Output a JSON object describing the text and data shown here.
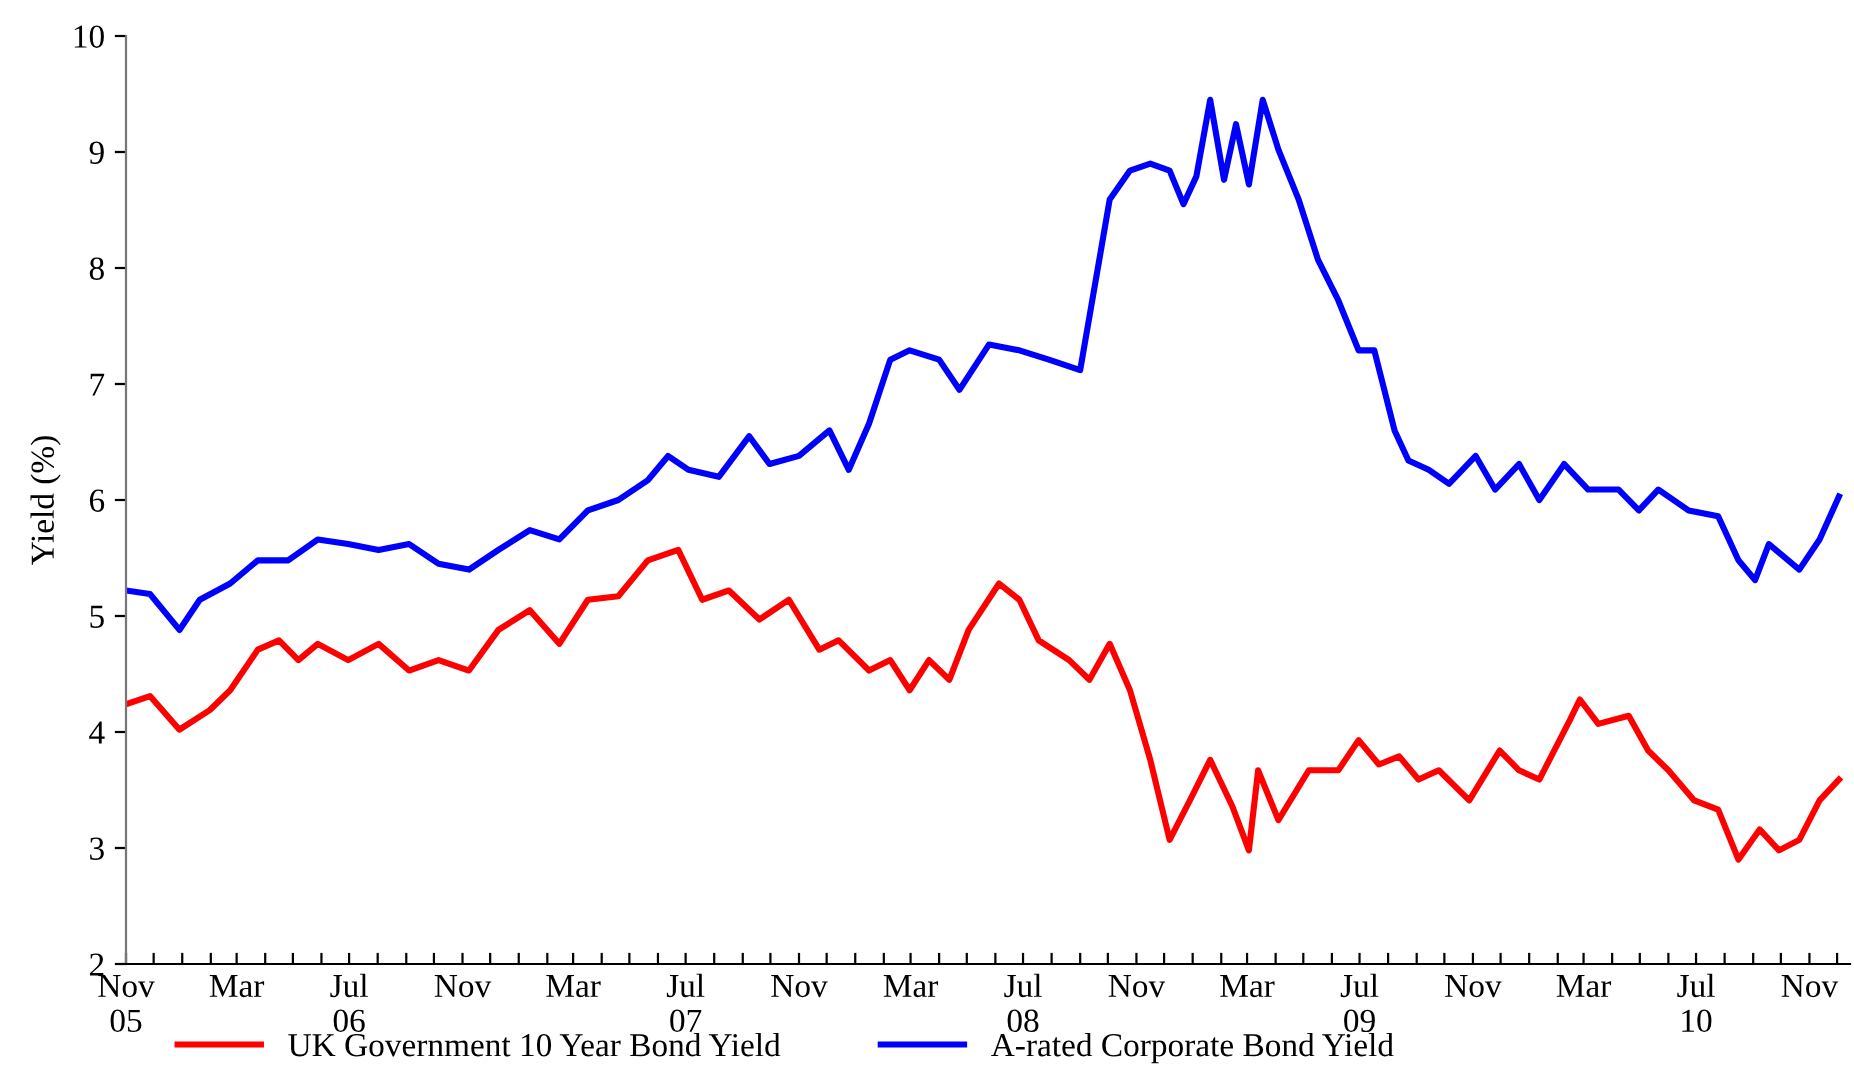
{
  "chart_data": {
    "type": "line",
    "ylabel": "Yield (%)",
    "xlim": [
      "2005-11-01",
      "2010-12-15"
    ],
    "ylim": [
      2,
      10
    ],
    "yticks": [
      2,
      3,
      4,
      5,
      6,
      7,
      8,
      9,
      10
    ],
    "xticks": [
      {
        "value": "2005-11-01",
        "label": "Nov\n05"
      },
      {
        "value": "2005-12-01",
        "label": null
      },
      {
        "value": "2006-01-01",
        "label": null
      },
      {
        "value": "2006-02-01",
        "label": null
      },
      {
        "value": "2006-03-01",
        "label": "Mar"
      },
      {
        "value": "2006-04-01",
        "label": null
      },
      {
        "value": "2006-05-01",
        "label": null
      },
      {
        "value": "2006-06-01",
        "label": null
      },
      {
        "value": "2006-07-01",
        "label": "Jul\n06"
      },
      {
        "value": "2006-08-01",
        "label": null
      },
      {
        "value": "2006-09-01",
        "label": null
      },
      {
        "value": "2006-10-01",
        "label": null
      },
      {
        "value": "2006-11-01",
        "label": "Nov"
      },
      {
        "value": "2006-12-01",
        "label": null
      },
      {
        "value": "2007-01-01",
        "label": null
      },
      {
        "value": "2007-02-01",
        "label": null
      },
      {
        "value": "2007-03-01",
        "label": "Mar"
      },
      {
        "value": "2007-04-01",
        "label": null
      },
      {
        "value": "2007-05-01",
        "label": null
      },
      {
        "value": "2007-06-01",
        "label": null
      },
      {
        "value": "2007-07-01",
        "label": "Jul\n07"
      },
      {
        "value": "2007-08-01",
        "label": null
      },
      {
        "value": "2007-09-01",
        "label": null
      },
      {
        "value": "2007-10-01",
        "label": null
      },
      {
        "value": "2007-11-01",
        "label": "Nov"
      },
      {
        "value": "2007-12-01",
        "label": null
      },
      {
        "value": "2008-01-01",
        "label": null
      },
      {
        "value": "2008-02-01",
        "label": null
      },
      {
        "value": "2008-03-01",
        "label": "Mar"
      },
      {
        "value": "2008-04-01",
        "label": null
      },
      {
        "value": "2008-05-01",
        "label": null
      },
      {
        "value": "2008-06-01",
        "label": null
      },
      {
        "value": "2008-07-01",
        "label": "Jul\n08"
      },
      {
        "value": "2008-08-01",
        "label": null
      },
      {
        "value": "2008-09-01",
        "label": null
      },
      {
        "value": "2008-10-01",
        "label": null
      },
      {
        "value": "2008-11-01",
        "label": "Nov"
      },
      {
        "value": "2008-12-01",
        "label": null
      },
      {
        "value": "2009-01-01",
        "label": null
      },
      {
        "value": "2009-02-01",
        "label": null
      },
      {
        "value": "2009-03-01",
        "label": "Mar"
      },
      {
        "value": "2009-04-01",
        "label": null
      },
      {
        "value": "2009-05-01",
        "label": null
      },
      {
        "value": "2009-06-01",
        "label": null
      },
      {
        "value": "2009-07-01",
        "label": "Jul\n09"
      },
      {
        "value": "2009-08-01",
        "label": null
      },
      {
        "value": "2009-09-01",
        "label": null
      },
      {
        "value": "2009-10-01",
        "label": null
      },
      {
        "value": "2009-11-01",
        "label": "Nov"
      },
      {
        "value": "2009-12-01",
        "label": null
      },
      {
        "value": "2010-01-01",
        "label": null
      },
      {
        "value": "2010-02-01",
        "label": null
      },
      {
        "value": "2010-03-01",
        "label": "Mar"
      },
      {
        "value": "2010-04-01",
        "label": null
      },
      {
        "value": "2010-05-01",
        "label": null
      },
      {
        "value": "2010-06-01",
        "label": null
      },
      {
        "value": "2010-07-01",
        "label": "Jul\n10"
      },
      {
        "value": "2010-08-01",
        "label": null
      },
      {
        "value": "2010-09-01",
        "label": null
      },
      {
        "value": "2010-10-01",
        "label": null
      },
      {
        "value": "2010-11-01",
        "label": "Nov"
      },
      {
        "value": "2010-12-01",
        "label": null
      }
    ],
    "grid": false,
    "legend": "bottom",
    "marker": "none",
    "line_style": "solid",
    "series": [
      {
        "name": "UK Government 10 Year Bond Yield",
        "color": "#ff0000",
        "x": [
          "2005-11-01",
          "2005-11-27",
          "2005-12-29",
          "2006-01-31",
          "2006-02-22",
          "2006-03-24",
          "2006-04-16",
          "2006-05-07",
          "2006-05-28",
          "2006-06-30",
          "2006-08-02",
          "2006-09-04",
          "2006-10-06",
          "2006-11-08",
          "2006-12-10",
          "2007-01-13",
          "2007-02-14",
          "2007-03-17",
          "2007-04-19",
          "2007-05-21",
          "2007-06-23",
          "2007-07-19",
          "2007-08-17",
          "2007-09-19",
          "2007-10-21",
          "2007-11-23",
          "2007-12-14",
          "2008-01-16",
          "2008-02-08",
          "2008-02-29",
          "2008-03-21",
          "2008-04-12",
          "2008-05-03",
          "2008-06-05",
          "2008-06-27",
          "2008-07-18",
          "2008-08-20",
          "2008-09-11",
          "2008-10-03",
          "2008-10-25",
          "2008-11-16",
          "2008-12-07",
          "2008-12-29",
          "2009-01-20",
          "2009-02-13",
          "2009-03-03",
          "2009-03-13",
          "2009-04-04",
          "2009-05-07",
          "2009-06-08",
          "2009-06-30",
          "2009-07-22",
          "2009-08-13",
          "2009-09-03",
          "2009-09-25",
          "2009-10-28",
          "2009-11-30",
          "2009-12-21",
          "2010-01-12",
          "2010-02-14",
          "2010-02-25",
          "2010-03-17",
          "2010-04-19",
          "2010-05-10",
          "2010-06-01",
          "2010-06-29",
          "2010-07-25",
          "2010-08-16",
          "2010-09-08",
          "2010-09-29",
          "2010-10-21",
          "2010-11-12",
          "2010-12-03"
        ],
        "values": [
          4.24,
          4.31,
          4.02,
          4.19,
          4.36,
          4.71,
          4.79,
          4.62,
          4.76,
          4.62,
          4.76,
          4.53,
          4.62,
          4.53,
          4.88,
          5.05,
          4.76,
          5.14,
          5.17,
          5.48,
          5.57,
          5.14,
          5.22,
          4.97,
          5.14,
          4.71,
          4.79,
          4.53,
          4.62,
          4.36,
          4.62,
          4.45,
          4.88,
          5.28,
          5.14,
          4.79,
          4.62,
          4.45,
          4.76,
          4.36,
          3.76,
          3.07,
          3.41,
          3.76,
          3.36,
          2.98,
          3.67,
          3.24,
          3.67,
          3.67,
          3.93,
          3.72,
          3.79,
          3.59,
          3.67,
          3.41,
          3.84,
          3.67,
          3.59,
          4.1,
          4.28,
          4.07,
          4.14,
          3.84,
          3.67,
          3.41,
          3.33,
          2.9,
          3.16,
          2.98,
          3.07,
          3.41,
          3.59
        ]
      },
      {
        "name": "A-rated Corporate Bond Yield",
        "color": "#0000ff",
        "x": [
          "2005-11-01",
          "2005-11-27",
          "2005-12-29",
          "2006-01-20",
          "2006-02-22",
          "2006-03-24",
          "2006-04-26",
          "2006-05-28",
          "2006-06-30",
          "2006-08-02",
          "2006-09-04",
          "2006-10-06",
          "2006-11-08",
          "2006-12-10",
          "2007-01-13",
          "2007-02-14",
          "2007-03-17",
          "2007-04-19",
          "2007-05-21",
          "2007-06-12",
          "2007-07-04",
          "2007-08-06",
          "2007-09-08",
          "2007-09-30",
          "2007-11-01",
          "2007-12-04",
          "2007-12-25",
          "2008-01-16",
          "2008-02-08",
          "2008-02-29",
          "2008-04-01",
          "2008-04-23",
          "2008-05-25",
          "2008-06-27",
          "2008-07-29",
          "2008-09-01",
          "2008-09-18",
          "2008-10-03",
          "2008-10-25",
          "2008-11-16",
          "2008-12-07",
          "2008-12-22",
          "2009-01-05",
          "2009-01-20",
          "2009-02-04",
          "2009-02-17",
          "2009-03-03",
          "2009-03-18",
          "2009-04-04",
          "2009-04-26",
          "2009-05-17",
          "2009-06-08",
          "2009-06-30",
          "2009-07-17",
          "2009-08-08",
          "2009-08-23",
          "2009-09-14",
          "2009-10-06",
          "2009-11-04",
          "2009-11-25",
          "2009-12-21",
          "2010-01-12",
          "2010-02-08",
          "2010-03-06",
          "2010-04-08",
          "2010-04-30",
          "2010-05-21",
          "2010-06-23",
          "2010-07-25",
          "2010-08-16",
          "2010-09-03",
          "2010-09-18",
          "2010-10-21",
          "2010-11-12",
          "2010-12-03"
        ],
        "values": [
          5.22,
          5.19,
          4.88,
          5.14,
          5.28,
          5.48,
          5.48,
          5.66,
          5.62,
          5.57,
          5.62,
          5.45,
          5.4,
          5.57,
          5.74,
          5.66,
          5.91,
          6.0,
          6.17,
          6.38,
          6.26,
          6.2,
          6.55,
          6.31,
          6.38,
          6.6,
          6.26,
          6.66,
          7.21,
          7.29,
          7.21,
          6.95,
          7.34,
          7.29,
          7.21,
          7.12,
          7.9,
          8.59,
          8.84,
          8.9,
          8.84,
          8.55,
          8.79,
          9.45,
          8.76,
          9.24,
          8.72,
          9.45,
          9.02,
          8.59,
          8.07,
          7.72,
          7.29,
          7.29,
          6.6,
          6.34,
          6.26,
          6.14,
          6.38,
          6.09,
          6.31,
          6.0,
          6.31,
          6.09,
          6.09,
          5.91,
          6.09,
          5.91,
          5.86,
          5.48,
          5.31,
          5.62,
          5.4,
          5.66,
          6.03
        ]
      }
    ]
  }
}
